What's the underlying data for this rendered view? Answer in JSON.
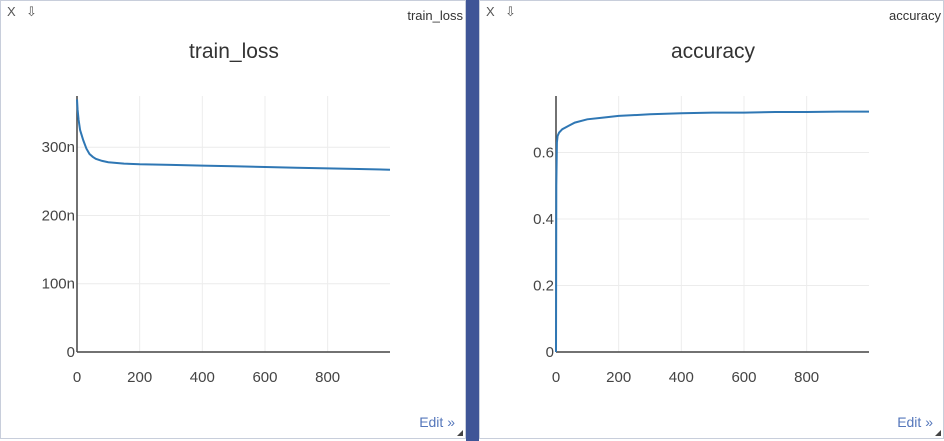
{
  "panes": [
    {
      "window_title": "train_loss",
      "close_label": "X",
      "download_label": "⇩",
      "edit_label": "Edit »",
      "chart_data": {
        "type": "line",
        "title": "train_loss",
        "xlabel": "",
        "ylabel": "",
        "xlim": [
          0,
          999
        ],
        "ylim": [
          0,
          3.75e-07
        ],
        "x_ticks": [
          0,
          200,
          400,
          600,
          800
        ],
        "x_tick_labels": [
          "0",
          "200",
          "400",
          "600",
          "800"
        ],
        "y_ticks": [
          0,
          1e-07,
          2e-07,
          3e-07
        ],
        "y_tick_labels": [
          "0",
          "100n",
          "200n",
          "300n"
        ],
        "grid": true,
        "series": [
          {
            "x": [
              0,
              2,
              5,
              10,
              20,
              30,
              40,
              50,
              60,
              80,
              100,
              150,
              200,
              300,
              400,
              500,
              600,
              700,
              800,
              900,
              999
            ],
            "y": [
              3.7e-07,
              3.55e-07,
              3.4e-07,
              3.25e-07,
              3.1e-07,
              2.98e-07,
              2.9e-07,
              2.86e-07,
              2.83e-07,
              2.8e-07,
              2.78e-07,
              2.76e-07,
              2.75e-07,
              2.74e-07,
              2.73e-07,
              2.72e-07,
              2.71e-07,
              2.7e-07,
              2.69e-07,
              2.68e-07,
              2.67e-07
            ]
          }
        ]
      }
    },
    {
      "window_title": "accuracy",
      "close_label": "X",
      "download_label": "⇩",
      "edit_label": "Edit »",
      "chart_data": {
        "type": "line",
        "title": "accuracy",
        "xlabel": "",
        "ylabel": "",
        "xlim": [
          0,
          999
        ],
        "ylim": [
          0,
          0.77
        ],
        "x_ticks": [
          0,
          200,
          400,
          600,
          800
        ],
        "x_tick_labels": [
          "0",
          "200",
          "400",
          "600",
          "800"
        ],
        "y_ticks": [
          0,
          0.2,
          0.4,
          0.6
        ],
        "y_tick_labels": [
          "0",
          "0.2",
          "0.4",
          "0.6"
        ],
        "grid": true,
        "series": [
          {
            "x": [
              0,
              1,
              3,
              5,
              10,
              20,
              40,
              60,
              100,
              150,
              200,
              300,
              400,
              500,
              600,
              700,
              800,
              900,
              999
            ],
            "y": [
              0.0,
              0.5,
              0.63,
              0.65,
              0.66,
              0.67,
              0.68,
              0.69,
              0.7,
              0.705,
              0.71,
              0.715,
              0.718,
              0.72,
              0.72,
              0.722,
              0.722,
              0.723,
              0.723
            ]
          }
        ]
      }
    }
  ]
}
